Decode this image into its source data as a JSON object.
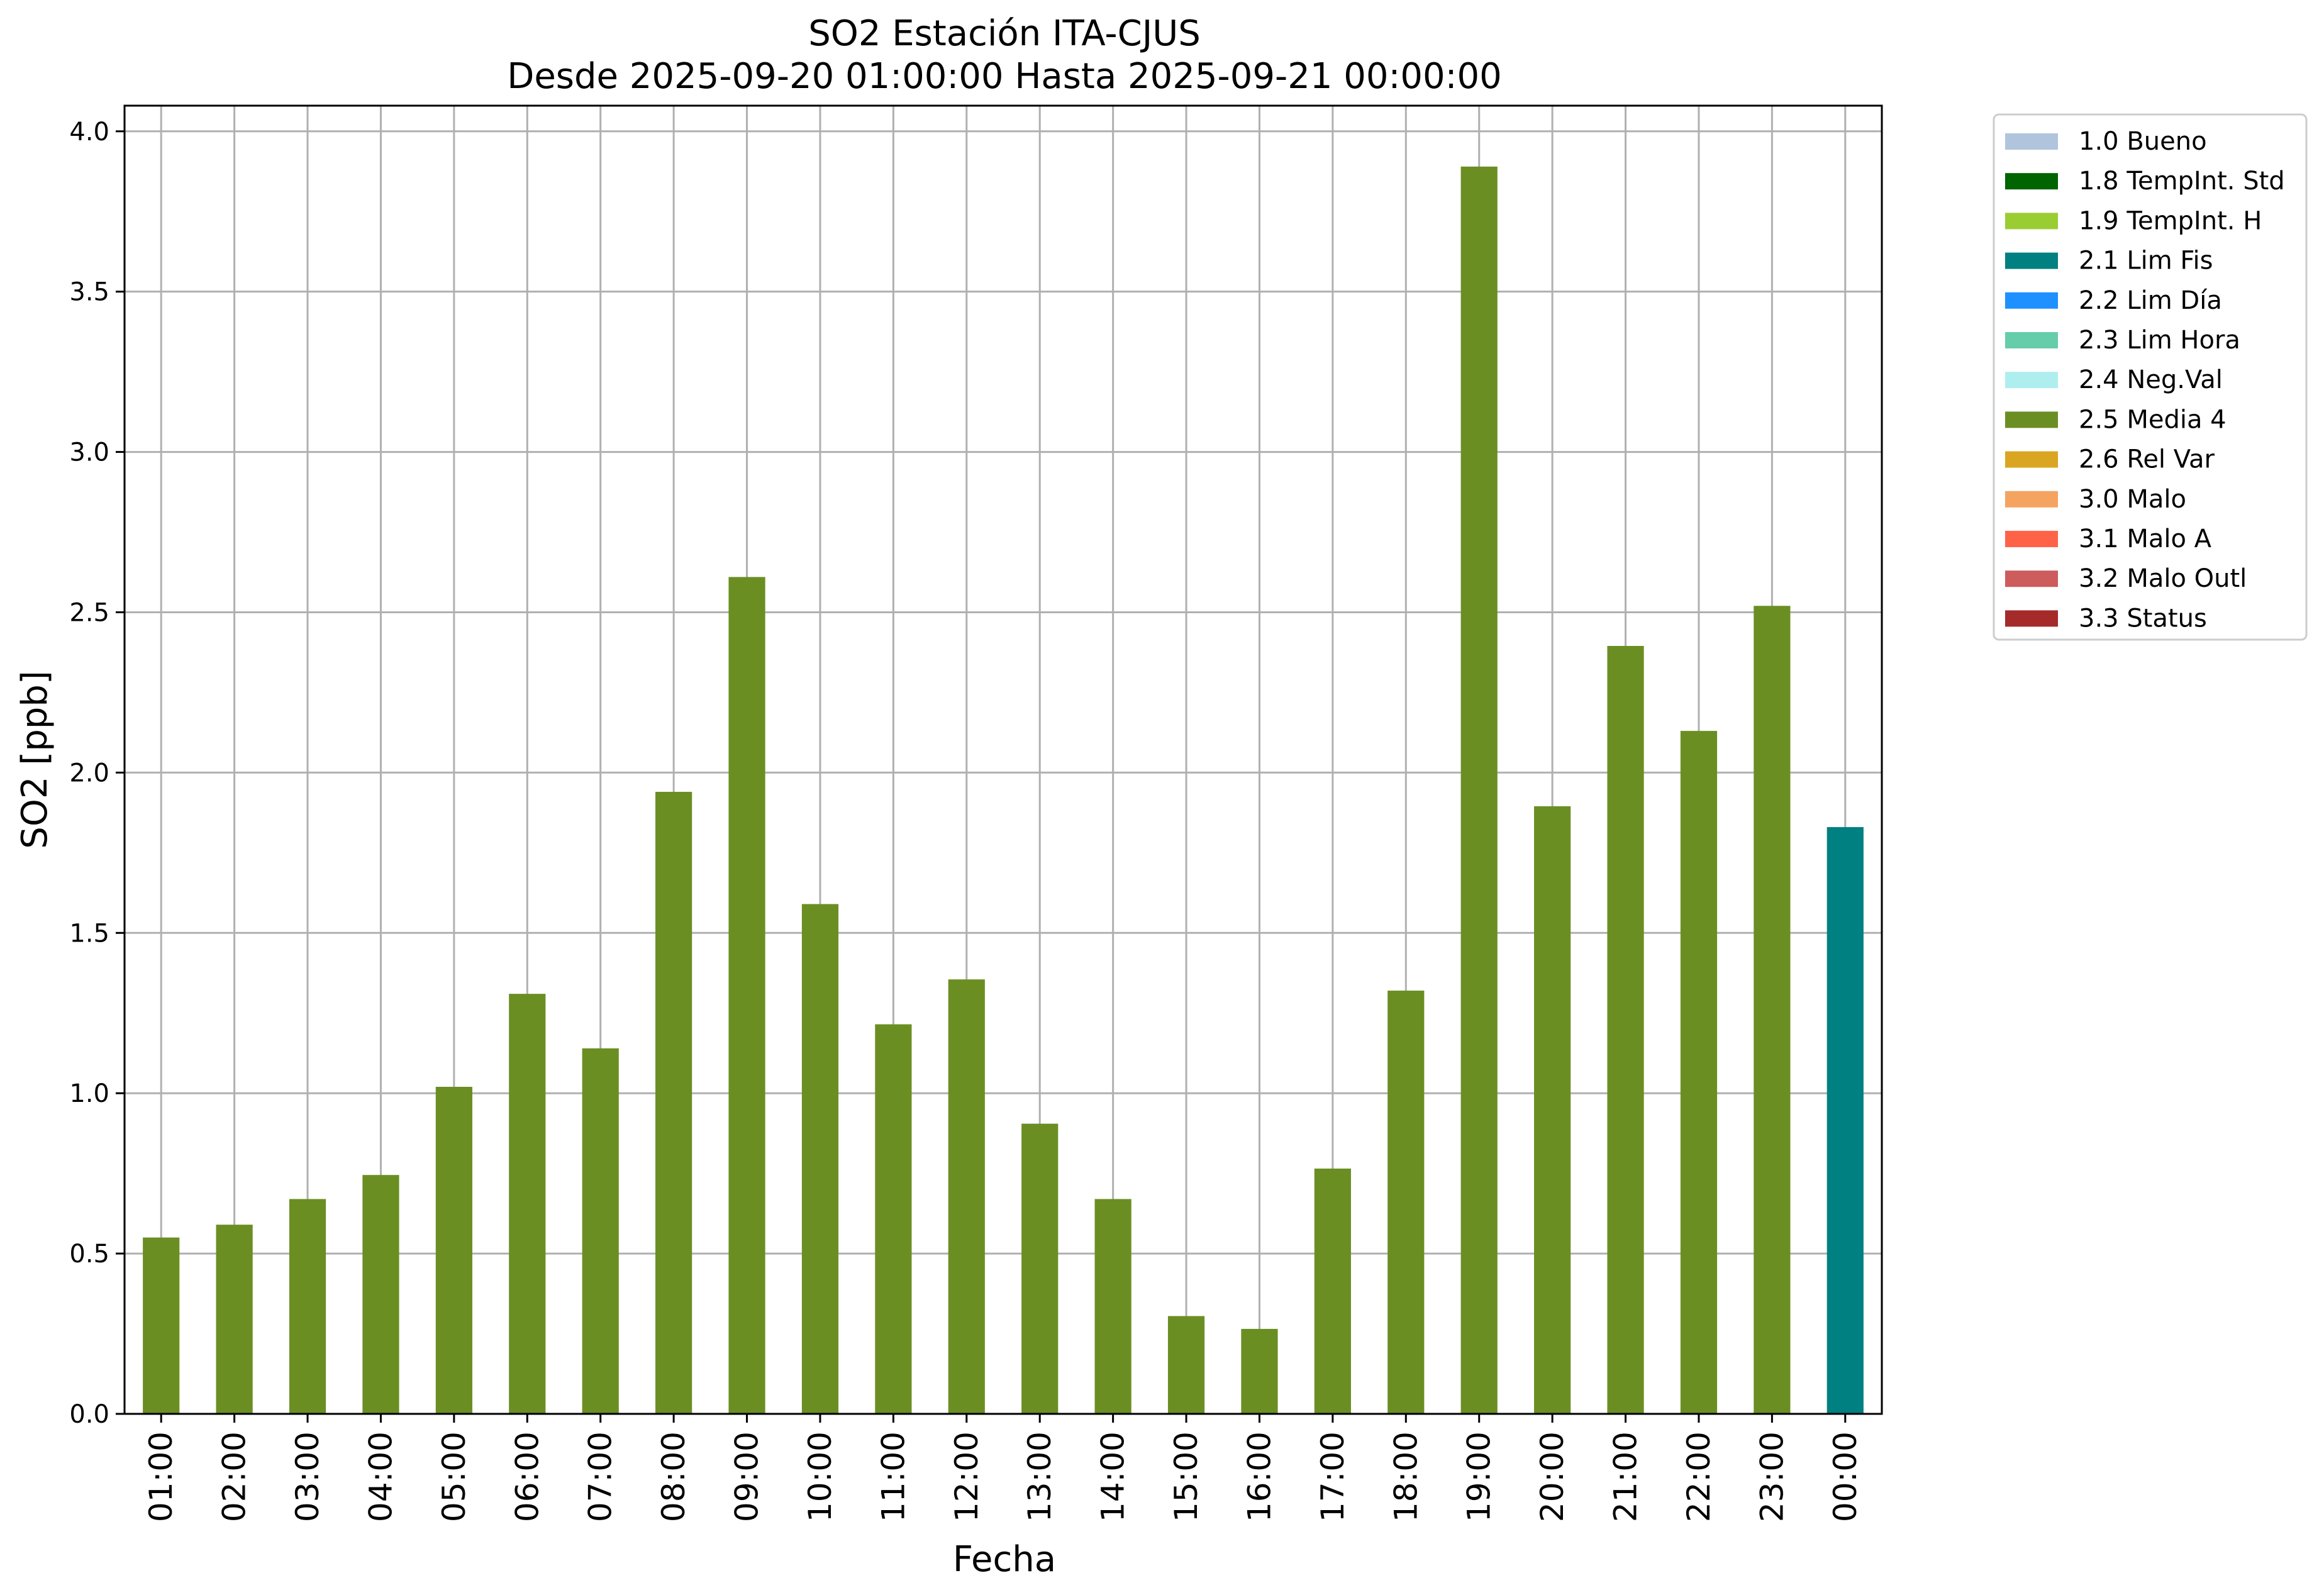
{
  "chart_data": {
    "type": "bar",
    "title": "SO2 Estación ITA-CJUS",
    "subtitle": "Desde 2025-09-20 01:00:00 Hasta 2025-09-21 00:00:00",
    "xlabel": "Fecha",
    "ylabel": "SO2 [ppb]",
    "ylim": [
      0,
      4.08
    ],
    "yticks": [
      "0.0",
      "0.5",
      "1.0",
      "1.5",
      "2.0",
      "2.5",
      "3.0",
      "3.5",
      "4.0"
    ],
    "grid": true,
    "legend_position": "outside-right",
    "categories": [
      "01:00",
      "02:00",
      "03:00",
      "04:00",
      "05:00",
      "06:00",
      "07:00",
      "08:00",
      "09:00",
      "10:00",
      "11:00",
      "12:00",
      "13:00",
      "14:00",
      "15:00",
      "16:00",
      "17:00",
      "18:00",
      "19:00",
      "20:00",
      "21:00",
      "22:00",
      "23:00",
      "00:00"
    ],
    "values": [
      0.55,
      0.59,
      0.67,
      0.745,
      1.02,
      1.31,
      1.14,
      1.94,
      2.61,
      1.59,
      1.215,
      1.355,
      0.905,
      0.67,
      0.305,
      0.265,
      0.765,
      1.32,
      3.89,
      1.895,
      2.395,
      2.13,
      2.52,
      1.83
    ],
    "bar_flags": [
      "2.5 Media 4",
      "2.5 Media 4",
      "2.5 Media 4",
      "2.5 Media 4",
      "2.5 Media 4",
      "2.5 Media 4",
      "2.5 Media 4",
      "2.5 Media 4",
      "2.5 Media 4",
      "2.5 Media 4",
      "2.5 Media 4",
      "2.5 Media 4",
      "2.5 Media 4",
      "2.5 Media 4",
      "2.5 Media 4",
      "2.5 Media 4",
      "2.5 Media 4",
      "2.5 Media 4",
      "2.5 Media 4",
      "2.5 Media 4",
      "2.5 Media 4",
      "2.5 Media 4",
      "2.5 Media 4",
      "2.1 Lim Fis"
    ],
    "legend": [
      {
        "label": "1.0 Bueno",
        "color": "#b0c4de"
      },
      {
        "label": "1.8 TempInt. Std",
        "color": "#006400"
      },
      {
        "label": "1.9 TempInt. H",
        "color": "#9acd32"
      },
      {
        "label": "2.1 Lim Fis",
        "color": "#008080"
      },
      {
        "label": "2.2 Lim Día",
        "color": "#1e90ff"
      },
      {
        "label": "2.3 Lim Hora",
        "color": "#66cdaa"
      },
      {
        "label": "2.4 Neg.Val",
        "color": "#afeeee"
      },
      {
        "label": "2.5 Media 4",
        "color": "#6b8e23"
      },
      {
        "label": "2.6 Rel Var",
        "color": "#daa520"
      },
      {
        "label": "3.0 Malo",
        "color": "#f4a460"
      },
      {
        "label": "3.1 Malo A",
        "color": "#ff6347"
      },
      {
        "label": "3.2 Malo Outl",
        "color": "#cd5c5c"
      },
      {
        "label": "3.3 Status",
        "color": "#a52a2a"
      }
    ]
  }
}
